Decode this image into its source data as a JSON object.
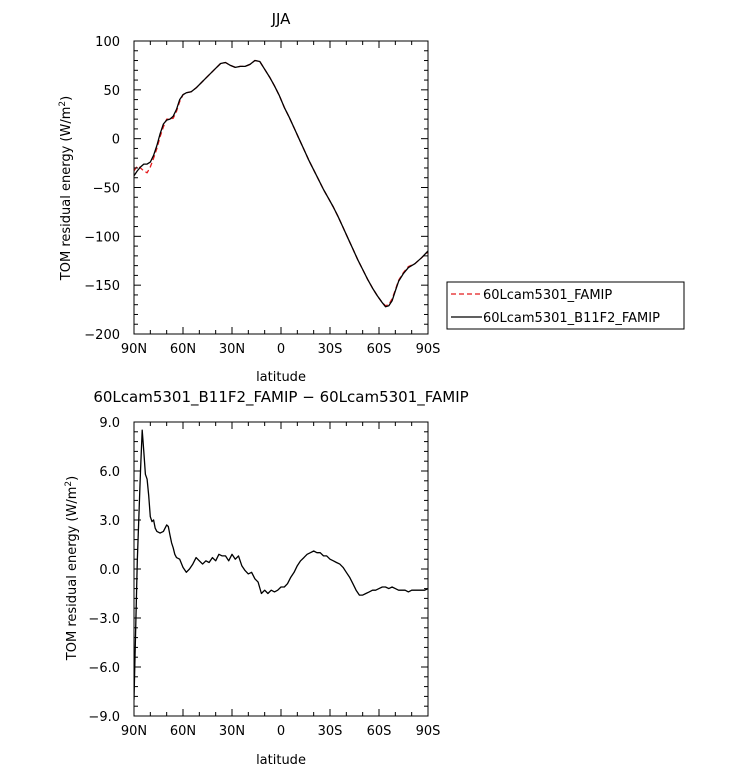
{
  "chart_data": [
    {
      "type": "line",
      "title": "JJA",
      "xlabel": "latitude",
      "ylabel": "TOM residual energy  (W/m²)",
      "xlim": [
        90,
        -90
      ],
      "ylim": [
        -200,
        100
      ],
      "xticks": [
        {
          "value": 90,
          "label": "90N"
        },
        {
          "value": 60,
          "label": "60N"
        },
        {
          "value": 30,
          "label": "30N"
        },
        {
          "value": 0,
          "label": "0"
        },
        {
          "value": -30,
          "label": "30S"
        },
        {
          "value": -60,
          "label": "60S"
        },
        {
          "value": -90,
          "label": "90S"
        }
      ],
      "yticks": [
        {
          "value": 100,
          "label": "100"
        },
        {
          "value": 50,
          "label": "50"
        },
        {
          "value": 0,
          "label": "0"
        },
        {
          "value": -50,
          "label": "−50"
        },
        {
          "value": -100,
          "label": "−100"
        },
        {
          "value": -150,
          "label": "−150"
        },
        {
          "value": -200,
          "label": "−200"
        }
      ],
      "legend_position": "right",
      "series": [
        {
          "name": "60Lcam5301_FAMIP",
          "color": "#e41a1c",
          "dash": "dashed",
          "points": [
            [
              90,
              -33
            ],
            [
              88,
              -28
            ],
            [
              86,
              -30
            ],
            [
              84,
              -33
            ],
            [
              82,
              -35
            ],
            [
              80,
              -29
            ],
            [
              78,
              -20
            ],
            [
              76,
              -10
            ],
            [
              74,
              2
            ],
            [
              72,
              12
            ],
            [
              70,
              20
            ],
            [
              68,
              20
            ],
            [
              66,
              21
            ],
            [
              64,
              28
            ],
            [
              62,
              38
            ],
            [
              60,
              45
            ],
            [
              58,
              47
            ],
            [
              55,
              48
            ],
            [
              52,
              52
            ],
            [
              49,
              57
            ],
            [
              46,
              62
            ],
            [
              43,
              67
            ],
            [
              40,
              72
            ],
            [
              37,
              77
            ],
            [
              34,
              78
            ],
            [
              31,
              75
            ],
            [
              28,
              73
            ],
            [
              25,
              74
            ],
            [
              22,
              74
            ],
            [
              19,
              76
            ],
            [
              16,
              80
            ],
            [
              13,
              79
            ],
            [
              10,
              71
            ],
            [
              7,
              63
            ],
            [
              4,
              54
            ],
            [
              1,
              44
            ],
            [
              -2,
              32
            ],
            [
              -5,
              22
            ],
            [
              -8,
              11
            ],
            [
              -11,
              0
            ],
            [
              -14,
              -11
            ],
            [
              -17,
              -22
            ],
            [
              -20,
              -32
            ],
            [
              -23,
              -42
            ],
            [
              -26,
              -52
            ],
            [
              -29,
              -61
            ],
            [
              -32,
              -70
            ],
            [
              -35,
              -80
            ],
            [
              -38,
              -91
            ],
            [
              -41,
              -102
            ],
            [
              -44,
              -113
            ],
            [
              -47,
              -124
            ],
            [
              -50,
              -134
            ],
            [
              -53,
              -144
            ],
            [
              -56,
              -153
            ],
            [
              -59,
              -161
            ],
            [
              -62,
              -168
            ],
            [
              -64,
              -171
            ],
            [
              -66,
              -170
            ],
            [
              -68,
              -164
            ],
            [
              -70,
              -155
            ],
            [
              -72,
              -145
            ],
            [
              -75,
              -137
            ],
            [
              -78,
              -131
            ],
            [
              -82,
              -128
            ],
            [
              -86,
              -122
            ],
            [
              -90,
              -116
            ]
          ]
        },
        {
          "name": "60Lcam5301_B11F2_FAMIP",
          "color": "#000000",
          "dash": "solid",
          "points": [
            [
              90,
              -38
            ],
            [
              88,
              -33
            ],
            [
              86,
              -29
            ],
            [
              84,
              -26
            ],
            [
              82,
              -26
            ],
            [
              80,
              -24
            ],
            [
              78,
              -17
            ],
            [
              76,
              -7
            ],
            [
              74,
              5
            ],
            [
              72,
              15
            ],
            [
              70,
              19
            ],
            [
              68,
              20
            ],
            [
              66,
              23
            ],
            [
              64,
              30
            ],
            [
              62,
              40
            ],
            [
              60,
              45
            ],
            [
              58,
              47
            ],
            [
              55,
              48
            ],
            [
              52,
              52
            ],
            [
              49,
              57
            ],
            [
              46,
              62
            ],
            [
              43,
              67
            ],
            [
              40,
              72
            ],
            [
              37,
              77
            ],
            [
              34,
              78
            ],
            [
              31,
              75
            ],
            [
              28,
              73
            ],
            [
              25,
              74
            ],
            [
              22,
              74
            ],
            [
              19,
              76
            ],
            [
              16,
              80
            ],
            [
              13,
              79
            ],
            [
              10,
              71
            ],
            [
              7,
              63
            ],
            [
              4,
              54
            ],
            [
              1,
              44
            ],
            [
              -2,
              32
            ],
            [
              -5,
              22
            ],
            [
              -8,
              11
            ],
            [
              -11,
              0
            ],
            [
              -14,
              -11
            ],
            [
              -17,
              -22
            ],
            [
              -20,
              -32
            ],
            [
              -23,
              -42
            ],
            [
              -26,
              -52
            ],
            [
              -29,
              -61
            ],
            [
              -32,
              -70
            ],
            [
              -35,
              -80
            ],
            [
              -38,
              -91
            ],
            [
              -41,
              -102
            ],
            [
              -44,
              -113
            ],
            [
              -47,
              -124
            ],
            [
              -50,
              -134
            ],
            [
              -53,
              -144
            ],
            [
              -56,
              -153
            ],
            [
              -59,
              -161
            ],
            [
              -62,
              -168
            ],
            [
              -64,
              -172
            ],
            [
              -66,
              -171
            ],
            [
              -68,
              -166
            ],
            [
              -70,
              -156
            ],
            [
              -72,
              -146
            ],
            [
              -75,
              -138
            ],
            [
              -78,
              -132
            ],
            [
              -82,
              -128
            ],
            [
              -86,
              -122
            ],
            [
              -90,
              -115
            ]
          ]
        }
      ]
    },
    {
      "type": "line",
      "title": "60Lcam5301_B11F2_FAMIP − 60Lcam5301_FAMIP",
      "xlabel": "latitude",
      "ylabel": "TOM residual energy  (W/m²)",
      "xlim": [
        90,
        -90
      ],
      "ylim": [
        -9.0,
        9.0
      ],
      "xticks": [
        {
          "value": 90,
          "label": "90N"
        },
        {
          "value": 60,
          "label": "60N"
        },
        {
          "value": 30,
          "label": "30N"
        },
        {
          "value": 0,
          "label": "0"
        },
        {
          "value": -30,
          "label": "30S"
        },
        {
          "value": -60,
          "label": "60S"
        },
        {
          "value": -90,
          "label": "90S"
        }
      ],
      "yticks": [
        {
          "value": 9,
          "label": "9.0"
        },
        {
          "value": 6,
          "label": "6.0"
        },
        {
          "value": 3,
          "label": "3.0"
        },
        {
          "value": 0,
          "label": "0.0"
        },
        {
          "value": -3,
          "label": "−3.0"
        },
        {
          "value": -6,
          "label": "−6.0"
        },
        {
          "value": -9,
          "label": "−9.0"
        }
      ],
      "series": [
        {
          "color": "#000000",
          "dash": "solid",
          "points": [
            [
              90,
              -8.0
            ],
            [
              88,
              0.5
            ],
            [
              86,
              6.0
            ],
            [
              85,
              8.5
            ],
            [
              84,
              7.2
            ],
            [
              83,
              5.8
            ],
            [
              82,
              5.5
            ],
            [
              81,
              4.5
            ],
            [
              80,
              3.2
            ],
            [
              79,
              2.9
            ],
            [
              78,
              3.0
            ],
            [
              77,
              2.5
            ],
            [
              76,
              2.3
            ],
            [
              74,
              2.2
            ],
            [
              72,
              2.3
            ],
            [
              70,
              2.7
            ],
            [
              69,
              2.6
            ],
            [
              68,
              2.1
            ],
            [
              67,
              1.6
            ],
            [
              66,
              1.3
            ],
            [
              65,
              0.9
            ],
            [
              64,
              0.7
            ],
            [
              62,
              0.6
            ],
            [
              60,
              0.1
            ],
            [
              58,
              -0.2
            ],
            [
              56,
              0.0
            ],
            [
              54,
              0.3
            ],
            [
              52,
              0.7
            ],
            [
              50,
              0.5
            ],
            [
              48,
              0.3
            ],
            [
              46,
              0.5
            ],
            [
              44,
              0.4
            ],
            [
              42,
              0.7
            ],
            [
              40,
              0.5
            ],
            [
              38,
              0.9
            ],
            [
              36,
              0.8
            ],
            [
              34,
              0.8
            ],
            [
              32,
              0.5
            ],
            [
              30,
              0.9
            ],
            [
              28,
              0.6
            ],
            [
              26,
              0.8
            ],
            [
              24,
              0.2
            ],
            [
              22,
              -0.1
            ],
            [
              20,
              -0.3
            ],
            [
              18,
              -0.2
            ],
            [
              16,
              -0.6
            ],
            [
              14,
              -0.8
            ],
            [
              12,
              -1.5
            ],
            [
              10,
              -1.3
            ],
            [
              8,
              -1.5
            ],
            [
              6,
              -1.3
            ],
            [
              4,
              -1.4
            ],
            [
              2,
              -1.3
            ],
            [
              0,
              -1.1
            ],
            [
              -2,
              -1.1
            ],
            [
              -4,
              -0.9
            ],
            [
              -6,
              -0.5
            ],
            [
              -8,
              -0.2
            ],
            [
              -10,
              0.2
            ],
            [
              -12,
              0.5
            ],
            [
              -14,
              0.7
            ],
            [
              -16,
              0.9
            ],
            [
              -18,
              1.0
            ],
            [
              -20,
              1.1
            ],
            [
              -22,
              1.0
            ],
            [
              -24,
              1.0
            ],
            [
              -26,
              0.8
            ],
            [
              -28,
              0.8
            ],
            [
              -30,
              0.6
            ],
            [
              -32,
              0.5
            ],
            [
              -34,
              0.4
            ],
            [
              -36,
              0.3
            ],
            [
              -38,
              0.1
            ],
            [
              -40,
              -0.2
            ],
            [
              -42,
              -0.5
            ],
            [
              -44,
              -0.9
            ],
            [
              -46,
              -1.3
            ],
            [
              -48,
              -1.6
            ],
            [
              -50,
              -1.6
            ],
            [
              -52,
              -1.5
            ],
            [
              -54,
              -1.4
            ],
            [
              -56,
              -1.3
            ],
            [
              -58,
              -1.3
            ],
            [
              -60,
              -1.2
            ],
            [
              -62,
              -1.1
            ],
            [
              -64,
              -1.1
            ],
            [
              -66,
              -1.2
            ],
            [
              -68,
              -1.1
            ],
            [
              -70,
              -1.2
            ],
            [
              -72,
              -1.3
            ],
            [
              -74,
              -1.3
            ],
            [
              -76,
              -1.3
            ],
            [
              -78,
              -1.4
            ],
            [
              -80,
              -1.3
            ],
            [
              -82,
              -1.3
            ],
            [
              -84,
              -1.3
            ],
            [
              -86,
              -1.3
            ],
            [
              -88,
              -1.3
            ],
            [
              -90,
              -1.2
            ]
          ]
        }
      ]
    }
  ]
}
